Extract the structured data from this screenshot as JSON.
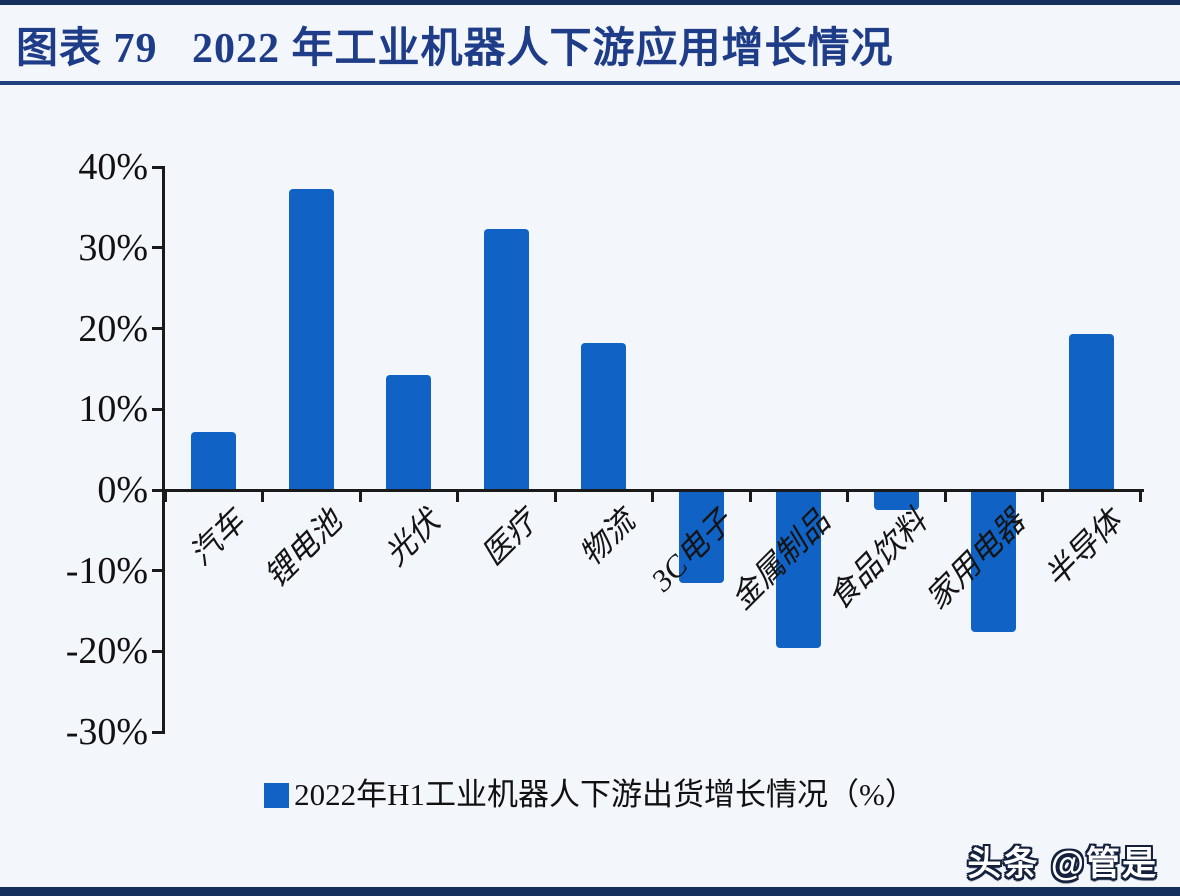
{
  "page": {
    "title": "图表 79   2022 年工业机器人下游应用增长情况",
    "watermark": "头条 @管是"
  },
  "colors": {
    "bar": "#1162c5",
    "axis": "#1a1a1a",
    "navy_band": "#16305e",
    "title_text": "#1e3c87",
    "title_underline": "#20407e",
    "background": "#f3f6fb",
    "watermark_fill": "#ffffff"
  },
  "chart_data": {
    "type": "bar",
    "title": "2022 年工业机器人下游应用增长情况",
    "categories": [
      "汽车",
      "锂电池",
      "光伏",
      "医疗",
      "物流",
      "3C电子",
      "金属制品",
      "食品饮料",
      "家用电器",
      "半导体"
    ],
    "values": [
      7.2,
      37.3,
      14.2,
      32.3,
      18.2,
      -11.4,
      -19.4,
      -2.4,
      -17.5,
      19.3
    ],
    "series_name": "2022年H1工业机器人下游出货增长情况（%）",
    "legend": "2022年H1工业机器人下游出货增长情况（%）",
    "legend_position": "bottom",
    "xlabel": "",
    "ylabel": "",
    "ylim": [
      -30,
      40
    ],
    "yticks": [
      40,
      30,
      20,
      10,
      0,
      -10,
      -20,
      -30
    ],
    "ytick_labels": [
      "40%",
      "30%",
      "20%",
      "10%",
      "0%",
      "-10%",
      "-20%",
      "-30%"
    ],
    "grid": false
  }
}
